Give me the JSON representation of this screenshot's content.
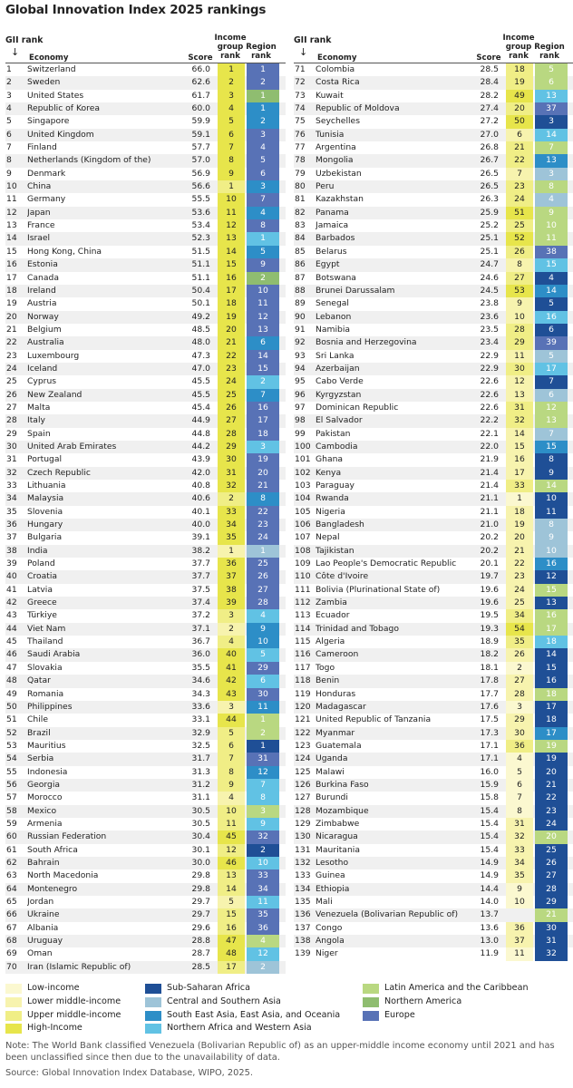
{
  "title": "Global Innovation Index 2025 rankings",
  "header": {
    "gii": "GII rank",
    "arrow": "↓",
    "economy": "Economy",
    "score": "Score",
    "income": "Income group rank",
    "region": "Region rank"
  },
  "colors": {
    "income": {
      "low": "#fbf8d0",
      "lower_middle": "#f7f3ae",
      "upper_middle": "#f0ee86",
      "high": "#e7e54b"
    },
    "region": {
      "ssa": "#1f4f96",
      "csa": "#9ec4d8",
      "sea": "#2d8ec7",
      "nawa": "#61c2e4",
      "lac": "#b9d881",
      "na": "#8fbd70",
      "eu": "#5872b6"
    }
  },
  "rows": [
    [
      1,
      "Switzerland",
      "66.0",
      "1",
      "1",
      "h",
      "eu"
    ],
    [
      2,
      "Sweden",
      "62.6",
      "2",
      "2",
      "h",
      "eu"
    ],
    [
      3,
      "United States",
      "61.7",
      "3",
      "1",
      "h",
      "na"
    ],
    [
      4,
      "Republic of Korea",
      "60.0",
      "4",
      "1",
      "h",
      "sea"
    ],
    [
      5,
      "Singapore",
      "59.9",
      "5",
      "2",
      "h",
      "sea"
    ],
    [
      6,
      "United Kingdom",
      "59.1",
      "6",
      "3",
      "h",
      "eu"
    ],
    [
      7,
      "Finland",
      "57.7",
      "7",
      "4",
      "h",
      "eu"
    ],
    [
      8,
      "Netherlands (Kingdom of the)",
      "57.0",
      "8",
      "5",
      "h",
      "eu"
    ],
    [
      9,
      "Denmark",
      "56.9",
      "9",
      "6",
      "h",
      "eu"
    ],
    [
      10,
      "China",
      "56.6",
      "1",
      "3",
      "u",
      "sea"
    ],
    [
      11,
      "Germany",
      "55.5",
      "10",
      "7",
      "h",
      "eu"
    ],
    [
      12,
      "Japan",
      "53.6",
      "11",
      "4",
      "h",
      "sea"
    ],
    [
      13,
      "France",
      "53.4",
      "12",
      "8",
      "h",
      "eu"
    ],
    [
      14,
      "Israel",
      "52.3",
      "13",
      "1",
      "h",
      "nawa"
    ],
    [
      15,
      "Hong Kong, China",
      "51.5",
      "14",
      "5",
      "h",
      "sea"
    ],
    [
      16,
      "Estonia",
      "51.1",
      "15",
      "9",
      "h",
      "eu"
    ],
    [
      17,
      "Canada",
      "51.1",
      "16",
      "2",
      "h",
      "na"
    ],
    [
      18,
      "Ireland",
      "50.4",
      "17",
      "10",
      "h",
      "eu"
    ],
    [
      19,
      "Austria",
      "50.1",
      "18",
      "11",
      "h",
      "eu"
    ],
    [
      20,
      "Norway",
      "49.2",
      "19",
      "12",
      "h",
      "eu"
    ],
    [
      21,
      "Belgium",
      "48.5",
      "20",
      "13",
      "h",
      "eu"
    ],
    [
      22,
      "Australia",
      "48.0",
      "21",
      "6",
      "h",
      "sea"
    ],
    [
      23,
      "Luxembourg",
      "47.3",
      "22",
      "14",
      "h",
      "eu"
    ],
    [
      24,
      "Iceland",
      "47.0",
      "23",
      "15",
      "h",
      "eu"
    ],
    [
      25,
      "Cyprus",
      "45.5",
      "24",
      "2",
      "h",
      "nawa"
    ],
    [
      26,
      "New Zealand",
      "45.5",
      "25",
      "7",
      "h",
      "sea"
    ],
    [
      27,
      "Malta",
      "45.4",
      "26",
      "16",
      "h",
      "eu"
    ],
    [
      28,
      "Italy",
      "44.9",
      "27",
      "17",
      "h",
      "eu"
    ],
    [
      29,
      "Spain",
      "44.8",
      "28",
      "18",
      "h",
      "eu"
    ],
    [
      30,
      "United Arab Emirates",
      "44.2",
      "29",
      "3",
      "h",
      "nawa"
    ],
    [
      31,
      "Portugal",
      "43.9",
      "30",
      "19",
      "h",
      "eu"
    ],
    [
      32,
      "Czech Republic",
      "42.0",
      "31",
      "20",
      "h",
      "eu"
    ],
    [
      33,
      "Lithuania",
      "40.8",
      "32",
      "21",
      "h",
      "eu"
    ],
    [
      34,
      "Malaysia",
      "40.6",
      "2",
      "8",
      "u",
      "sea"
    ],
    [
      35,
      "Slovenia",
      "40.1",
      "33",
      "22",
      "h",
      "eu"
    ],
    [
      36,
      "Hungary",
      "40.0",
      "34",
      "23",
      "h",
      "eu"
    ],
    [
      37,
      "Bulgaria",
      "39.1",
      "35",
      "24",
      "h",
      "eu"
    ],
    [
      38,
      "India",
      "38.2",
      "1",
      "1",
      "l",
      "csa"
    ],
    [
      39,
      "Poland",
      "37.7",
      "36",
      "25",
      "h",
      "eu"
    ],
    [
      40,
      "Croatia",
      "37.7",
      "37",
      "26",
      "h",
      "eu"
    ],
    [
      41,
      "Latvia",
      "37.5",
      "38",
      "27",
      "h",
      "eu"
    ],
    [
      42,
      "Greece",
      "37.4",
      "39",
      "28",
      "h",
      "eu"
    ],
    [
      43,
      "Türkiye",
      "37.2",
      "3",
      "4",
      "u",
      "nawa"
    ],
    [
      44,
      "Viet Nam",
      "37.1",
      "2",
      "9",
      "l",
      "sea"
    ],
    [
      45,
      "Thailand",
      "36.7",
      "4",
      "10",
      "u",
      "sea"
    ],
    [
      46,
      "Saudi Arabia",
      "36.0",
      "40",
      "5",
      "h",
      "nawa"
    ],
    [
      47,
      "Slovakia",
      "35.5",
      "41",
      "29",
      "h",
      "eu"
    ],
    [
      48,
      "Qatar",
      "34.6",
      "42",
      "6",
      "h",
      "nawa"
    ],
    [
      49,
      "Romania",
      "34.3",
      "43",
      "30",
      "h",
      "eu"
    ],
    [
      50,
      "Philippines",
      "33.6",
      "3",
      "11",
      "l",
      "sea"
    ],
    [
      51,
      "Chile",
      "33.1",
      "44",
      "1",
      "h",
      "lac"
    ],
    [
      52,
      "Brazil",
      "32.9",
      "5",
      "2",
      "u",
      "lac"
    ],
    [
      53,
      "Mauritius",
      "32.5",
      "6",
      "1",
      "u",
      "ssa"
    ],
    [
      54,
      "Serbia",
      "31.7",
      "7",
      "31",
      "u",
      "eu"
    ],
    [
      55,
      "Indonesia",
      "31.3",
      "8",
      "12",
      "u",
      "sea"
    ],
    [
      56,
      "Georgia",
      "31.2",
      "9",
      "7",
      "u",
      "nawa"
    ],
    [
      57,
      "Morocco",
      "31.1",
      "4",
      "8",
      "l",
      "nawa"
    ],
    [
      58,
      "Mexico",
      "30.5",
      "10",
      "3",
      "u",
      "lac"
    ],
    [
      59,
      "Armenia",
      "30.5",
      "11",
      "9",
      "u",
      "nawa"
    ],
    [
      60,
      "Russian Federation",
      "30.4",
      "45",
      "32",
      "h",
      "eu"
    ],
    [
      61,
      "South Africa",
      "30.1",
      "12",
      "2",
      "u",
      "ssa"
    ],
    [
      62,
      "Bahrain",
      "30.0",
      "46",
      "10",
      "h",
      "nawa"
    ],
    [
      63,
      "North Macedonia",
      "29.8",
      "13",
      "33",
      "u",
      "eu"
    ],
    [
      64,
      "Montenegro",
      "29.8",
      "14",
      "34",
      "u",
      "eu"
    ],
    [
      65,
      "Jordan",
      "29.7",
      "5",
      "11",
      "l",
      "nawa"
    ],
    [
      66,
      "Ukraine",
      "29.7",
      "15",
      "35",
      "u",
      "eu"
    ],
    [
      67,
      "Albania",
      "29.6",
      "16",
      "36",
      "u",
      "eu"
    ],
    [
      68,
      "Uruguay",
      "28.8",
      "47",
      "4",
      "h",
      "lac"
    ],
    [
      69,
      "Oman",
      "28.7",
      "48",
      "12",
      "h",
      "nawa"
    ],
    [
      70,
      "Iran (Islamic Republic of)",
      "28.5",
      "17",
      "2",
      "u",
      "csa"
    ],
    [
      71,
      "Colombia",
      "28.5",
      "18",
      "5",
      "u",
      "lac"
    ],
    [
      72,
      "Costa Rica",
      "28.4",
      "19",
      "6",
      "u",
      "lac"
    ],
    [
      73,
      "Kuwait",
      "28.2",
      "49",
      "13",
      "h",
      "nawa"
    ],
    [
      74,
      "Republic of Moldova",
      "27.4",
      "20",
      "37",
      "u",
      "eu"
    ],
    [
      75,
      "Seychelles",
      "27.2",
      "50",
      "3",
      "h",
      "ssa"
    ],
    [
      76,
      "Tunisia",
      "27.0",
      "6",
      "14",
      "l",
      "nawa"
    ],
    [
      77,
      "Argentina",
      "26.8",
      "21",
      "7",
      "u",
      "lac"
    ],
    [
      78,
      "Mongolia",
      "26.7",
      "22",
      "13",
      "u",
      "sea"
    ],
    [
      79,
      "Uzbekistan",
      "26.5",
      "7",
      "3",
      "l",
      "csa"
    ],
    [
      80,
      "Peru",
      "26.5",
      "23",
      "8",
      "u",
      "lac"
    ],
    [
      81,
      "Kazakhstan",
      "26.3",
      "24",
      "4",
      "u",
      "csa"
    ],
    [
      82,
      "Panama",
      "25.9",
      "51",
      "9",
      "h",
      "lac"
    ],
    [
      83,
      "Jamaica",
      "25.2",
      "25",
      "10",
      "u",
      "lac"
    ],
    [
      84,
      "Barbados",
      "25.1",
      "52",
      "11",
      "h",
      "lac"
    ],
    [
      85,
      "Belarus",
      "25.1",
      "26",
      "38",
      "u",
      "eu"
    ],
    [
      86,
      "Egypt",
      "24.7",
      "8",
      "15",
      "l",
      "nawa"
    ],
    [
      87,
      "Botswana",
      "24.6",
      "27",
      "4",
      "u",
      "ssa"
    ],
    [
      88,
      "Brunei Darussalam",
      "24.5",
      "53",
      "14",
      "h",
      "sea"
    ],
    [
      89,
      "Senegal",
      "23.8",
      "9",
      "5",
      "l",
      "ssa"
    ],
    [
      90,
      "Lebanon",
      "23.6",
      "10",
      "16",
      "l",
      "nawa"
    ],
    [
      91,
      "Namibia",
      "23.5",
      "28",
      "6",
      "u",
      "ssa"
    ],
    [
      92,
      "Bosnia and Herzegovina",
      "23.4",
      "29",
      "39",
      "u",
      "eu"
    ],
    [
      93,
      "Sri Lanka",
      "22.9",
      "11",
      "5",
      "l",
      "csa"
    ],
    [
      94,
      "Azerbaijan",
      "22.9",
      "30",
      "17",
      "u",
      "nawa"
    ],
    [
      95,
      "Cabo Verde",
      "22.6",
      "12",
      "7",
      "l",
      "ssa"
    ],
    [
      96,
      "Kyrgyzstan",
      "22.6",
      "13",
      "6",
      "l",
      "csa"
    ],
    [
      97,
      "Dominican Republic",
      "22.6",
      "31",
      "12",
      "u",
      "lac"
    ],
    [
      98,
      "El Salvador",
      "22.2",
      "32",
      "13",
      "u",
      "lac"
    ],
    [
      99,
      "Pakistan",
      "22.1",
      "14",
      "7",
      "l",
      "csa"
    ],
    [
      100,
      "Cambodia",
      "22.0",
      "15",
      "15",
      "l",
      "sea"
    ],
    [
      101,
      "Ghana",
      "21.9",
      "16",
      "8",
      "l",
      "ssa"
    ],
    [
      102,
      "Kenya",
      "21.4",
      "17",
      "9",
      "l",
      "ssa"
    ],
    [
      103,
      "Paraguay",
      "21.4",
      "33",
      "14",
      "u",
      "lac"
    ],
    [
      104,
      "Rwanda",
      "21.1",
      "1",
      "10",
      "w",
      "ssa"
    ],
    [
      105,
      "Nigeria",
      "21.1",
      "18",
      "11",
      "l",
      "ssa"
    ],
    [
      106,
      "Bangladesh",
      "21.0",
      "19",
      "8",
      "l",
      "csa"
    ],
    [
      107,
      "Nepal",
      "20.2",
      "20",
      "9",
      "l",
      "csa"
    ],
    [
      108,
      "Tajikistan",
      "20.2",
      "21",
      "10",
      "l",
      "csa"
    ],
    [
      109,
      "Lao People's Democratic Republic",
      "20.1",
      "22",
      "16",
      "l",
      "sea"
    ],
    [
      110,
      "Côte d'Ivoire",
      "19.7",
      "23",
      "12",
      "l",
      "ssa"
    ],
    [
      111,
      "Bolivia (Plurinational State of)",
      "19.6",
      "24",
      "15",
      "l",
      "lac"
    ],
    [
      112,
      "Zambia",
      "19.6",
      "25",
      "13",
      "l",
      "ssa"
    ],
    [
      113,
      "Ecuador",
      "19.5",
      "34",
      "16",
      "u",
      "lac"
    ],
    [
      114,
      "Trinidad and Tobago",
      "19.3",
      "54",
      "17",
      "h",
      "lac"
    ],
    [
      115,
      "Algeria",
      "18.9",
      "35",
      "18",
      "u",
      "nawa"
    ],
    [
      116,
      "Cameroon",
      "18.2",
      "26",
      "14",
      "l",
      "ssa"
    ],
    [
      117,
      "Togo",
      "18.1",
      "2",
      "15",
      "w",
      "ssa"
    ],
    [
      118,
      "Benin",
      "17.8",
      "27",
      "16",
      "l",
      "ssa"
    ],
    [
      119,
      "Honduras",
      "17.7",
      "28",
      "18",
      "l",
      "lac"
    ],
    [
      120,
      "Madagascar",
      "17.6",
      "3",
      "17",
      "w",
      "ssa"
    ],
    [
      121,
      "United Republic of Tanzania",
      "17.5",
      "29",
      "18",
      "l",
      "ssa"
    ],
    [
      122,
      "Myanmar",
      "17.3",
      "30",
      "17",
      "l",
      "sea"
    ],
    [
      123,
      "Guatemala",
      "17.1",
      "36",
      "19",
      "u",
      "lac"
    ],
    [
      124,
      "Uganda",
      "17.1",
      "4",
      "19",
      "w",
      "ssa"
    ],
    [
      125,
      "Malawi",
      "16.0",
      "5",
      "20",
      "w",
      "ssa"
    ],
    [
      126,
      "Burkina Faso",
      "15.9",
      "6",
      "21",
      "w",
      "ssa"
    ],
    [
      127,
      "Burundi",
      "15.8",
      "7",
      "22",
      "w",
      "ssa"
    ],
    [
      128,
      "Mozambique",
      "15.4",
      "8",
      "23",
      "w",
      "ssa"
    ],
    [
      129,
      "Zimbabwe",
      "15.4",
      "31",
      "24",
      "l",
      "ssa"
    ],
    [
      130,
      "Nicaragua",
      "15.4",
      "32",
      "20",
      "l",
      "lac"
    ],
    [
      131,
      "Mauritania",
      "15.4",
      "33",
      "25",
      "l",
      "ssa"
    ],
    [
      132,
      "Lesotho",
      "14.9",
      "34",
      "26",
      "l",
      "ssa"
    ],
    [
      133,
      "Guinea",
      "14.9",
      "35",
      "27",
      "l",
      "ssa"
    ],
    [
      134,
      "Ethiopia",
      "14.4",
      "9",
      "28",
      "w",
      "ssa"
    ],
    [
      135,
      "Mali",
      "14.0",
      "10",
      "29",
      "w",
      "ssa"
    ],
    [
      136,
      "Venezuela (Bolivarian Republic of)",
      "13.7",
      "",
      "21",
      "n",
      "lac"
    ],
    [
      137,
      "Congo",
      "13.6",
      "36",
      "30",
      "l",
      "ssa"
    ],
    [
      138,
      "Angola",
      "13.0",
      "37",
      "31",
      "l",
      "ssa"
    ],
    [
      139,
      "Niger",
      "11.9",
      "11",
      "32",
      "w",
      "ssa"
    ]
  ],
  "legend": {
    "income": [
      {
        "label": "Low-income",
        "key": "low"
      },
      {
        "label": "Lower middle-income",
        "key": "lower_middle"
      },
      {
        "label": "Upper middle-income",
        "key": "upper_middle"
      },
      {
        "label": "High-Income",
        "key": "high"
      }
    ],
    "region_a": [
      {
        "label": "Sub-Saharan Africa",
        "key": "ssa"
      },
      {
        "label": "Central and Southern Asia",
        "key": "csa"
      },
      {
        "label": "South East Asia, East Asia, and Oceania",
        "key": "sea"
      },
      {
        "label": "Northern Africa and Western Asia",
        "key": "nawa"
      }
    ],
    "region_b": [
      {
        "label": "Latin America and the Caribbean",
        "key": "lac"
      },
      {
        "label": "Northern America",
        "key": "na"
      },
      {
        "label": "Europe",
        "key": "eu"
      }
    ]
  },
  "note": "Note: The World Bank classified Venezuela (Bolivarian Republic of) as an upper-middle income economy until 2021 and has been unclassified since then due to the unavailability of data.",
  "source": "Source: Global Innovation Index Database, WIPO, 2025."
}
